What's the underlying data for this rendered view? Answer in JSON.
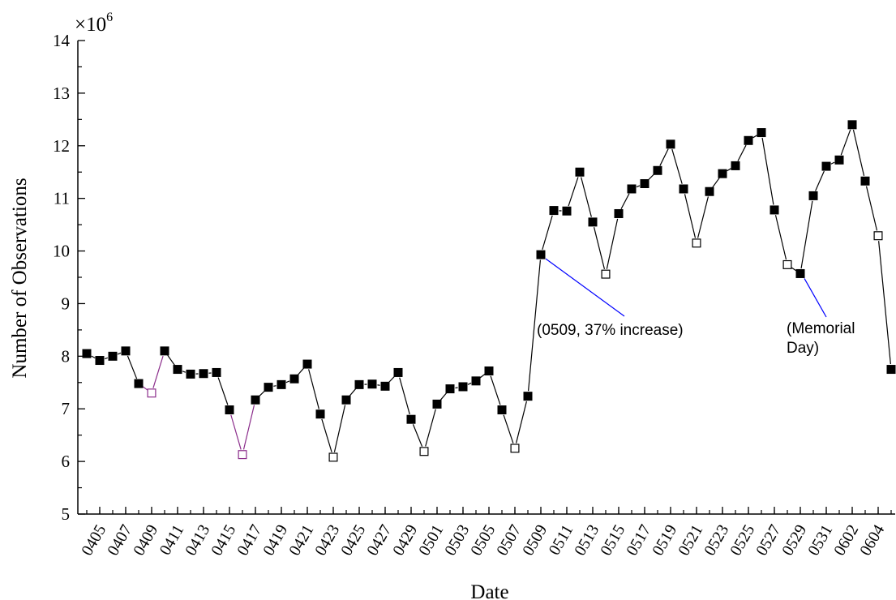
{
  "chart_data": {
    "type": "line",
    "title": "",
    "xlabel": "Date",
    "ylabel": "Number of Observations",
    "y_multiplier_label": "×10",
    "y_multiplier_exponent": "6",
    "ylim": [
      5,
      14
    ],
    "yticks": [
      "5",
      "6",
      "7",
      "8",
      "9",
      "10",
      "11",
      "12",
      "13",
      "14"
    ],
    "xticks": [
      "0405",
      "0407",
      "0409",
      "0411",
      "0413",
      "0415",
      "0417",
      "0419",
      "0421",
      "0423",
      "0425",
      "0427",
      "0429",
      "0501",
      "0503",
      "0505",
      "0507",
      "0509",
      "0511",
      "0513",
      "0515",
      "0517",
      "0519",
      "0521",
      "0523",
      "0525",
      "0527",
      "0529",
      "0531",
      "0602",
      "0604"
    ],
    "grid": false,
    "legend": "none",
    "colors": {
      "line": "#000000",
      "marker": "#000000",
      "weekend_marker_purple": "#8b2d8b",
      "annotation_line": "#0000ff"
    },
    "series": [
      {
        "dates": [
          "0404",
          "0405",
          "0406",
          "0407",
          "0408",
          "0409",
          "0410",
          "0411",
          "0412",
          "0413",
          "0414",
          "0415",
          "0416",
          "0417",
          "0418",
          "0419",
          "0420",
          "0421",
          "0422",
          "0423",
          "0424",
          "0425",
          "0426",
          "0427",
          "0428",
          "0429",
          "0430",
          "0501",
          "0502",
          "0503",
          "0504",
          "0505",
          "0506",
          "0507",
          "0508",
          "0509",
          "0510",
          "0511",
          "0512",
          "0513",
          "0514",
          "0515",
          "0516",
          "0517",
          "0518",
          "0519",
          "0520",
          "0521",
          "0522",
          "0523",
          "0524",
          "0525",
          "0526",
          "0527",
          "0528",
          "0529",
          "0530",
          "0531",
          "0601",
          "0602",
          "0603",
          "0604",
          "0605"
        ],
        "values": [
          8.05,
          7.92,
          8.0,
          8.1,
          7.48,
          7.3,
          8.1,
          7.75,
          7.66,
          7.67,
          7.69,
          6.98,
          6.13,
          7.17,
          7.41,
          7.46,
          7.57,
          7.85,
          6.9,
          6.08,
          7.17,
          7.46,
          7.47,
          7.43,
          7.69,
          6.8,
          6.19,
          7.09,
          7.38,
          7.42,
          7.53,
          7.72,
          6.98,
          6.25,
          7.24,
          9.93,
          10.77,
          10.76,
          11.5,
          10.55,
          9.56,
          10.71,
          11.18,
          11.28,
          11.53,
          12.03,
          11.18,
          10.15,
          11.13,
          11.47,
          11.62,
          12.1,
          12.25,
          10.78,
          9.74,
          9.57,
          11.05,
          11.61,
          11.73,
          12.4,
          11.33,
          10.29,
          7.75
        ],
        "marker": [
          "filled",
          "filled",
          "filled",
          "filled",
          "filled",
          "open-purple",
          "filled",
          "filled",
          "filled",
          "filled",
          "filled",
          "filled",
          "open-purple",
          "filled",
          "filled",
          "filled",
          "filled",
          "filled",
          "filled",
          "open",
          "filled",
          "filled",
          "filled",
          "filled",
          "filled",
          "filled",
          "open",
          "filled",
          "filled",
          "filled",
          "filled",
          "filled",
          "filled",
          "open",
          "filled",
          "filled",
          "filled",
          "filled",
          "filled",
          "filled",
          "open",
          "filled",
          "filled",
          "filled",
          "filled",
          "filled",
          "filled",
          "open",
          "filled",
          "filled",
          "filled",
          "filled",
          "filled",
          "filled",
          "open",
          "filled",
          "filled",
          "filled",
          "filled",
          "filled",
          "filled",
          "open",
          "filled"
        ]
      }
    ],
    "annotations": [
      {
        "text": "(0509, 37% increase)",
        "point_date": "0509",
        "point_value": 9.93
      },
      {
        "text_lines": [
          "(Memorial",
          "Day)"
        ],
        "point_date": "0529",
        "point_value": 9.57
      }
    ]
  }
}
